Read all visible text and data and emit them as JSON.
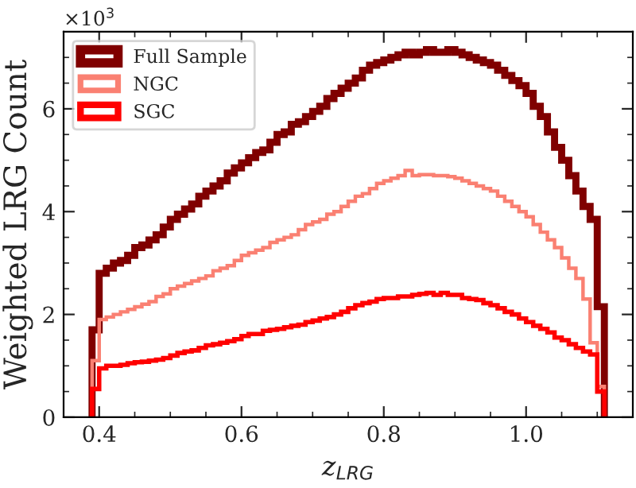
{
  "chart_data": {
    "type": "histogram",
    "xlabel": "z$_{LRG}$",
    "ylabel": "Weighted LRG Count",
    "annotations": [
      "×10$^{3}$"
    ],
    "bins": [
      0.39,
      0.4,
      0.41,
      0.42,
      0.43,
      0.44,
      0.45,
      0.46,
      0.47,
      0.48,
      0.49,
      0.5,
      0.51,
      0.52,
      0.53,
      0.54,
      0.55,
      0.56,
      0.57,
      0.58,
      0.59,
      0.6,
      0.61,
      0.62,
      0.63,
      0.64,
      0.65,
      0.66,
      0.67,
      0.68,
      0.69,
      0.7,
      0.71,
      0.72,
      0.73,
      0.74,
      0.75,
      0.76,
      0.77,
      0.78,
      0.79,
      0.8,
      0.81,
      0.82,
      0.83,
      0.84,
      0.85,
      0.86,
      0.87,
      0.88,
      0.89,
      0.9,
      0.91,
      0.92,
      0.93,
      0.94,
      0.95,
      0.96,
      0.97,
      0.98,
      0.99,
      1.0,
      1.01,
      1.02,
      1.03,
      1.04,
      1.05,
      1.06,
      1.07,
      1.08,
      1.09,
      1.1,
      1.11
    ],
    "series": [
      {
        "name": "Full Sample",
        "color": "#800000",
        "values": [
          1.7,
          2.8,
          2.9,
          3.0,
          3.05,
          3.15,
          3.3,
          3.35,
          3.45,
          3.55,
          3.7,
          3.85,
          3.95,
          4.05,
          4.15,
          4.3,
          4.4,
          4.5,
          4.6,
          4.75,
          4.85,
          4.95,
          5.05,
          5.15,
          5.2,
          5.35,
          5.5,
          5.55,
          5.7,
          5.75,
          5.85,
          5.95,
          6.05,
          6.2,
          6.3,
          6.4,
          6.5,
          6.6,
          6.75,
          6.85,
          6.9,
          6.95,
          7.0,
          7.05,
          7.1,
          7.05,
          7.1,
          7.15,
          7.1,
          7.1,
          7.15,
          7.1,
          7.05,
          7.0,
          6.95,
          6.9,
          6.85,
          6.75,
          6.65,
          6.55,
          6.45,
          6.3,
          6.05,
          5.85,
          5.55,
          5.25,
          5.0,
          4.7,
          4.4,
          4.1,
          3.85,
          2.15
        ]
      },
      {
        "name": "NGC",
        "color": "#fa8072",
        "values": [
          1.1,
          1.9,
          1.95,
          2.0,
          2.05,
          2.1,
          2.15,
          2.2,
          2.25,
          2.35,
          2.4,
          2.5,
          2.55,
          2.6,
          2.65,
          2.7,
          2.75,
          2.85,
          2.9,
          2.95,
          3.05,
          3.15,
          3.2,
          3.25,
          3.3,
          3.4,
          3.45,
          3.5,
          3.55,
          3.65,
          3.75,
          3.8,
          3.85,
          3.95,
          4.0,
          4.1,
          4.2,
          4.3,
          4.35,
          4.45,
          4.55,
          4.6,
          4.65,
          4.7,
          4.8,
          4.7,
          4.72,
          4.72,
          4.7,
          4.7,
          4.68,
          4.65,
          4.6,
          4.55,
          4.5,
          4.45,
          4.4,
          4.3,
          4.2,
          4.1,
          4.0,
          3.9,
          3.75,
          3.6,
          3.45,
          3.3,
          3.1,
          2.9,
          2.7,
          2.3,
          1.45,
          0.6
        ]
      },
      {
        "name": "SGC",
        "color": "#ff0000",
        "values": [
          0.55,
          0.95,
          1.0,
          1.0,
          1.02,
          1.05,
          1.07,
          1.08,
          1.1,
          1.12,
          1.15,
          1.2,
          1.25,
          1.28,
          1.3,
          1.35,
          1.4,
          1.42,
          1.45,
          1.48,
          1.52,
          1.58,
          1.62,
          1.62,
          1.68,
          1.7,
          1.72,
          1.75,
          1.78,
          1.8,
          1.85,
          1.88,
          1.92,
          1.95,
          2.0,
          2.05,
          2.12,
          2.18,
          2.22,
          2.25,
          2.3,
          2.32,
          2.32,
          2.35,
          2.35,
          2.38,
          2.4,
          2.42,
          2.38,
          2.42,
          2.38,
          2.38,
          2.32,
          2.3,
          2.28,
          2.22,
          2.18,
          2.12,
          2.05,
          2.0,
          1.92,
          1.85,
          1.78,
          1.72,
          1.65,
          1.55,
          1.5,
          1.42,
          1.35,
          1.28,
          1.22,
          0.5
        ]
      }
    ],
    "xlim": [
      0.35,
      1.15
    ],
    "xticks": [
      0.4,
      0.6,
      0.8,
      {
        "value": 1.0,
        "label": "1.0"
      }
    ],
    "ylim": [
      0,
      7.5
    ],
    "yticks": [
      0,
      2,
      4,
      6
    ],
    "grid": false,
    "legend": "top left"
  }
}
